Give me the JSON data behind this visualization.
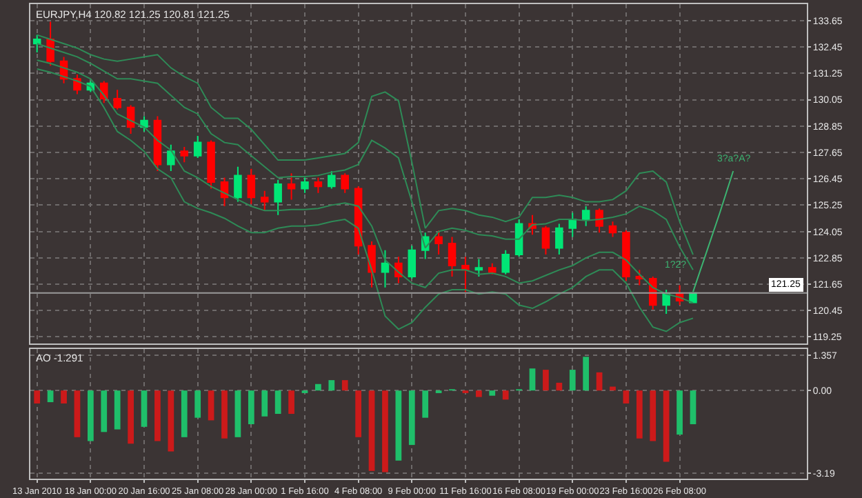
{
  "chart_data": [
    {
      "type": "candlestick",
      "title": "EURJPY,H4 120.82 121.25 120.81 121.25",
      "categories": [
        null,
        null,
        null,
        null,
        null,
        null,
        null,
        null,
        null,
        null,
        null,
        null,
        null,
        null,
        null,
        null,
        null,
        null,
        null,
        null,
        null,
        null,
        null,
        null,
        null,
        null,
        null,
        null,
        null,
        null,
        null,
        null,
        null,
        null,
        null,
        null,
        null,
        null,
        null,
        null,
        null,
        null,
        null,
        null,
        null,
        null,
        null,
        null,
        null,
        null,
        null,
        null,
        null,
        null,
        null,
        null,
        null,
        null
      ],
      "ohlc": [
        [
          132.6,
          133.0,
          132.2,
          132.8
        ],
        [
          132.8,
          133.6,
          131.6,
          131.8
        ],
        [
          131.8,
          132.0,
          130.8,
          131.0
        ],
        [
          131.0,
          131.2,
          130.3,
          130.5
        ],
        [
          130.5,
          130.9,
          130.4,
          130.8
        ],
        [
          130.8,
          130.9,
          129.9,
          130.1
        ],
        [
          130.1,
          130.5,
          129.6,
          129.7
        ],
        [
          129.7,
          129.8,
          128.5,
          128.8
        ],
        [
          128.8,
          129.3,
          128.6,
          129.1
        ],
        [
          129.1,
          129.3,
          126.8,
          127.1
        ],
        [
          127.1,
          128.0,
          126.8,
          127.7
        ],
        [
          127.7,
          127.9,
          127.2,
          127.5
        ],
        [
          127.5,
          128.4,
          127.4,
          128.1
        ],
        [
          128.1,
          128.2,
          126.0,
          126.3
        ],
        [
          126.3,
          126.5,
          125.2,
          125.6
        ],
        [
          125.6,
          127.0,
          125.4,
          126.6
        ],
        [
          126.6,
          126.9,
          125.3,
          125.6
        ],
        [
          125.6,
          125.9,
          125.0,
          125.4
        ],
        [
          125.4,
          126.4,
          124.8,
          126.2
        ],
        [
          126.2,
          126.7,
          125.5,
          126.0
        ],
        [
          126.0,
          126.5,
          125.8,
          126.3
        ],
        [
          126.3,
          126.5,
          125.8,
          126.1
        ],
        [
          126.1,
          126.8,
          126.0,
          126.6
        ],
        [
          126.6,
          126.7,
          125.8,
          126.0
        ],
        [
          126.0,
          126.1,
          123.0,
          123.4
        ],
        [
          123.4,
          123.6,
          121.5,
          122.2
        ],
        [
          122.2,
          123.2,
          121.5,
          122.6
        ],
        [
          122.6,
          122.9,
          121.7,
          122.0
        ],
        [
          122.0,
          123.4,
          121.9,
          123.2
        ],
        [
          123.2,
          124.0,
          122.8,
          123.8
        ],
        [
          123.8,
          124.1,
          123.0,
          123.5
        ],
        [
          123.5,
          123.8,
          122.0,
          122.5
        ],
        [
          122.5,
          122.9,
          121.3,
          122.3
        ],
        [
          122.3,
          122.8,
          122.0,
          122.4
        ],
        [
          122.4,
          122.6,
          122.1,
          122.2
        ],
        [
          122.2,
          123.2,
          122.1,
          123.0
        ],
        [
          123.0,
          124.6,
          122.9,
          124.4
        ],
        [
          124.4,
          124.8,
          123.9,
          124.2
        ],
        [
          124.2,
          124.3,
          123.0,
          123.3
        ],
        [
          123.3,
          124.4,
          123.0,
          124.2
        ],
        [
          124.2,
          124.9,
          123.8,
          124.6
        ],
        [
          124.6,
          125.2,
          124.3,
          125.0
        ],
        [
          125.0,
          125.1,
          124.0,
          124.3
        ],
        [
          124.3,
          124.5,
          123.8,
          124.0
        ],
        [
          124.0,
          124.1,
          121.8,
          122.0
        ],
        [
          122.0,
          122.3,
          121.6,
          121.9
        ],
        [
          121.9,
          122.0,
          120.5,
          120.7
        ],
        [
          120.7,
          121.4,
          120.3,
          121.2
        ],
        [
          121.2,
          121.6,
          120.7,
          120.9
        ],
        [
          120.82,
          121.25,
          120.81,
          121.25
        ],
        null,
        null,
        null,
        null,
        null,
        null,
        null,
        null
      ],
      "colors": [
        "#00e676",
        "#ff0000",
        "#ff0000",
        "#ff0000",
        "#00e676",
        "#ff0000",
        "#ff0000",
        "#ff0000",
        "#00e676",
        "#ff0000",
        "#00e676",
        "#ff0000",
        "#00e676",
        "#ff0000",
        "#ff0000",
        "#00e676",
        "#ff0000",
        "#ff0000",
        "#00e676",
        "#ff0000",
        "#00e676",
        "#ff0000",
        "#00e676",
        "#ff0000",
        "#ff0000",
        "#ff0000",
        "#00e676",
        "#ff0000",
        "#00e676",
        "#00e676",
        "#ff0000",
        "#ff0000",
        "#ff0000",
        "#00e676",
        "#ff0000",
        "#00e676",
        "#00e676",
        "#ff0000",
        "#ff0000",
        "#00e676",
        "#00e676",
        "#00e676",
        "#ff0000",
        "#ff0000",
        "#ff0000",
        "#ff0000",
        "#ff0000",
        "#00e676",
        "#ff0000",
        "#00e676",
        null,
        null,
        null,
        null,
        null,
        null,
        null,
        null
      ],
      "series": [
        {
          "type": "line",
          "color": "#2e8b57",
          "values": [
            133.0,
            132.8,
            132.6,
            132.4,
            132.1,
            131.9,
            131.8,
            131.9,
            132.0,
            132.1,
            131.5,
            131.1,
            130.8,
            129.7,
            129.2,
            129.2,
            128.7,
            128.0,
            127.3,
            127.3,
            127.3,
            127.4,
            127.5,
            127.6,
            128.1,
            130.2,
            130.4,
            130.0,
            127.2,
            124.2,
            125.0,
            125.1,
            125.0,
            124.8,
            124.7,
            124.5,
            124.7,
            125.6,
            125.6,
            125.7,
            125.6,
            125.4,
            125.4,
            125.5,
            125.9,
            126.7,
            126.8,
            126.3,
            124.5,
            123.0,
            null,
            null,
            null,
            null,
            null,
            null,
            null,
            null
          ]
        },
        {
          "type": "line",
          "color": "#2e8b57",
          "values": [
            132.6,
            132.4,
            132.2,
            132.0,
            131.7,
            131.35,
            131.0,
            131.0,
            130.9,
            130.8,
            130.25,
            129.7,
            129.4,
            128.5,
            128.1,
            128.0,
            127.5,
            127.0,
            126.5,
            126.55,
            126.55,
            126.6,
            126.75,
            126.85,
            127.1,
            128.2,
            127.85,
            127.4,
            125.4,
            123.3,
            124.05,
            124.2,
            124.1,
            123.9,
            123.85,
            123.7,
            123.7,
            124.35,
            124.4,
            124.6,
            124.6,
            124.55,
            124.6,
            124.7,
            124.85,
            125.2,
            125.0,
            124.6,
            123.35,
            122.3,
            null,
            null,
            null,
            null,
            null,
            null,
            null,
            null
          ]
        },
        {
          "type": "line",
          "color": "#2e8b57",
          "values": [
            131.85,
            131.7,
            131.5,
            131.3,
            131.0,
            130.25,
            129.4,
            129.1,
            128.8,
            128.2,
            127.75,
            126.8,
            126.5,
            126.1,
            125.8,
            125.5,
            125.2,
            125.0,
            125.0,
            125.05,
            125.05,
            125.1,
            125.25,
            125.35,
            125.2,
            124.3,
            122.75,
            122.2,
            121.7,
            121.5,
            122.15,
            122.3,
            122.3,
            122.1,
            122.15,
            122.0,
            121.7,
            121.8,
            122.05,
            122.3,
            122.5,
            122.85,
            123.1,
            123.1,
            122.75,
            122.1,
            121.5,
            121.2,
            121.05,
            120.8,
            null,
            null,
            null,
            null,
            null,
            null,
            null,
            null
          ]
        },
        {
          "type": "line",
          "color": "#2e8b57",
          "values": [
            131.45,
            131.3,
            131.1,
            130.9,
            130.65,
            129.7,
            128.6,
            128.2,
            127.7,
            126.9,
            126.5,
            125.4,
            125.1,
            124.9,
            124.65,
            124.3,
            124.0,
            124.0,
            124.2,
            124.3,
            124.3,
            124.35,
            124.5,
            124.6,
            124.2,
            122.3,
            120.2,
            119.6,
            119.9,
            120.6,
            121.2,
            121.4,
            121.4,
            121.2,
            121.3,
            121.2,
            120.7,
            120.55,
            120.85,
            121.2,
            121.5,
            122.0,
            122.3,
            122.3,
            121.7,
            120.6,
            119.7,
            119.5,
            119.9,
            120.1,
            null,
            null,
            null,
            null,
            null,
            null,
            null,
            null
          ]
        },
        {
          "type": "line",
          "color": "#3cb371",
          "values": [
            null,
            null,
            null,
            null,
            null,
            null,
            null,
            null,
            null,
            null,
            null,
            null,
            null,
            null,
            null,
            null,
            null,
            null,
            null,
            null,
            null,
            null,
            null,
            null,
            null,
            null,
            null,
            null,
            null,
            null,
            null,
            null,
            null,
            null,
            null,
            null,
            null,
            null,
            null,
            null,
            null,
            null,
            null,
            null,
            null,
            null,
            null,
            null,
            null,
            121.3,
            123.1,
            124.9,
            126.8,
            null,
            null,
            null,
            null,
            null
          ]
        }
      ],
      "ylim": [
        118.95,
        134.4
      ],
      "yticks": [
        133.65,
        132.45,
        131.25,
        130.05,
        128.85,
        127.65,
        126.45,
        125.25,
        124.05,
        122.85,
        121.65,
        120.45,
        119.25
      ],
      "ref_lines": [
        {
          "axis": "y",
          "value": 121.25,
          "label": "121.25",
          "color": "#9a9a9a"
        }
      ],
      "annotations": [
        "3?a?A?",
        "1?2?"
      ],
      "grid": true
    },
    {
      "type": "bar",
      "title": "AO -1.291",
      "categories": [
        "13 Jan 2010",
        null,
        null,
        null,
        "18 Jan 00:00",
        null,
        null,
        null,
        "20 Jan 16:00",
        null,
        null,
        null,
        "25 Jan 08:00",
        null,
        null,
        null,
        "28 Jan 00:00",
        null,
        null,
        null,
        "1 Feb 16:00",
        null,
        null,
        null,
        "4 Feb 08:00",
        null,
        null,
        null,
        "9 Feb 00:00",
        null,
        null,
        null,
        "11 Feb 16:00",
        null,
        null,
        null,
        "16 Feb 08:00",
        null,
        null,
        null,
        "19 Feb 00:00",
        null,
        null,
        null,
        "23 Feb 16:00",
        null,
        null,
        null,
        "26 Feb 08:00",
        null,
        null,
        null,
        null,
        null,
        null,
        null,
        null,
        null
      ],
      "values": [
        -0.5,
        -0.45,
        -0.5,
        -1.8,
        -1.95,
        -1.6,
        -1.5,
        -2.05,
        -1.4,
        -1.95,
        -2.35,
        -1.8,
        -1.05,
        -1.15,
        -1.85,
        -1.8,
        -1.3,
        -1.0,
        -0.9,
        -0.9,
        -0.1,
        0.25,
        0.4,
        0.4,
        -1.8,
        -3.1,
        -3.15,
        -2.7,
        -2.1,
        -1.05,
        -0.1,
        0.05,
        -0.1,
        -0.25,
        -0.2,
        -0.35,
        0.05,
        0.85,
        0.8,
        0.3,
        0.8,
        1.3,
        0.7,
        0.15,
        -0.5,
        -1.85,
        -1.95,
        -2.75,
        -1.7,
        -1.3,
        null,
        null,
        null,
        null,
        null,
        null,
        null,
        null
      ],
      "colors": [
        "#cc1a1a",
        "#1fbf6a",
        "#cc1a1a",
        "#cc1a1a",
        "#1fbf6a",
        "#1fbf6a",
        "#1fbf6a",
        "#cc1a1a",
        "#1fbf6a",
        "#cc1a1a",
        "#cc1a1a",
        "#1fbf6a",
        "#1fbf6a",
        "#cc1a1a",
        "#cc1a1a",
        "#1fbf6a",
        "#1fbf6a",
        "#1fbf6a",
        "#1fbf6a",
        "#cc1a1a",
        "#1fbf6a",
        "#1fbf6a",
        "#1fbf6a",
        "#cc1a1a",
        "#cc1a1a",
        "#cc1a1a",
        "#cc1a1a",
        "#1fbf6a",
        "#1fbf6a",
        "#1fbf6a",
        "#1fbf6a",
        "#1fbf6a",
        "#cc1a1a",
        "#cc1a1a",
        "#1fbf6a",
        "#cc1a1a",
        "#1fbf6a",
        "#1fbf6a",
        "#cc1a1a",
        "#cc1a1a",
        "#1fbf6a",
        "#1fbf6a",
        "#cc1a1a",
        "#cc1a1a",
        "#cc1a1a",
        "#cc1a1a",
        "#cc1a1a",
        "#cc1a1a",
        "#1fbf6a",
        "#1fbf6a",
        null,
        null,
        null,
        null,
        null,
        null,
        null,
        null
      ],
      "ylim": [
        -3.4,
        1.6
      ],
      "yticks": [
        1.357,
        {
          "value": 0,
          "label": "0.00"
        },
        -3.19
      ],
      "grid": true
    }
  ]
}
